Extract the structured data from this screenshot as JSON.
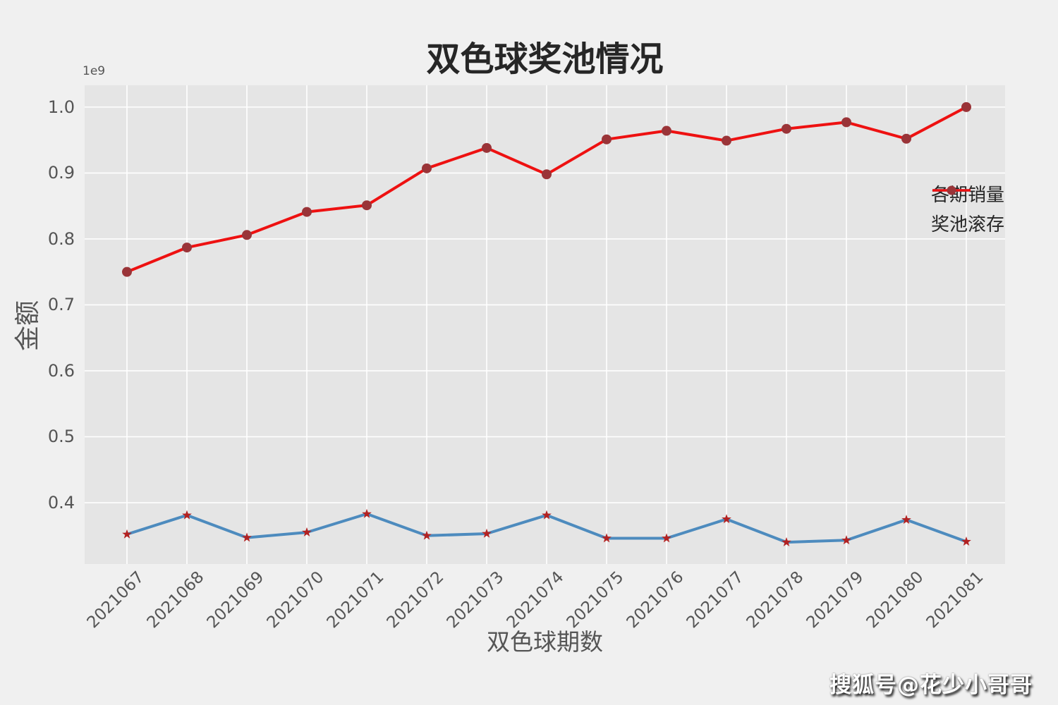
{
  "watermark": "搜狐号@花少小哥哥",
  "chart_data": {
    "type": "line",
    "title": "双色球奖池情况",
    "xlabel": "双色球期数",
    "ylabel": "金额",
    "y_offset_label": "1e9",
    "categories": [
      "2021067",
      "2021068",
      "2021069",
      "2021070",
      "2021071",
      "2021072",
      "2021073",
      "2021074",
      "2021075",
      "2021076",
      "2021077",
      "2021078",
      "2021079",
      "2021080",
      "2021081"
    ],
    "series": [
      {
        "name": "各期销量",
        "color": "#4d8bbe",
        "marker": "star",
        "marker_color": "#b22222",
        "values": [
          0.352,
          0.381,
          0.347,
          0.355,
          0.383,
          0.35,
          0.353,
          0.381,
          0.346,
          0.346,
          0.375,
          0.34,
          0.343,
          0.374,
          0.341
        ]
      },
      {
        "name": "奖池滚存",
        "color": "#ee1111",
        "marker": "circle",
        "marker_color": "#9a3438",
        "values": [
          0.75,
          0.787,
          0.806,
          0.841,
          0.851,
          0.907,
          0.938,
          0.898,
          0.951,
          0.964,
          0.949,
          0.967,
          0.977,
          0.952,
          1.0
        ]
      }
    ],
    "yticks": [
      1.0,
      0.9,
      0.8,
      0.7,
      0.6,
      0.5,
      0.4
    ],
    "ylim": [
      0.307,
      1.033
    ],
    "unit_multiplier": 1000000000,
    "grid": true,
    "legend_position": "upper right",
    "colors": {
      "figure_bg": "#f0f0f0",
      "axes_bg": "#e5e5e5",
      "grid": "#ffffff",
      "tick_text": "#555555",
      "title_text": "#262626"
    }
  }
}
